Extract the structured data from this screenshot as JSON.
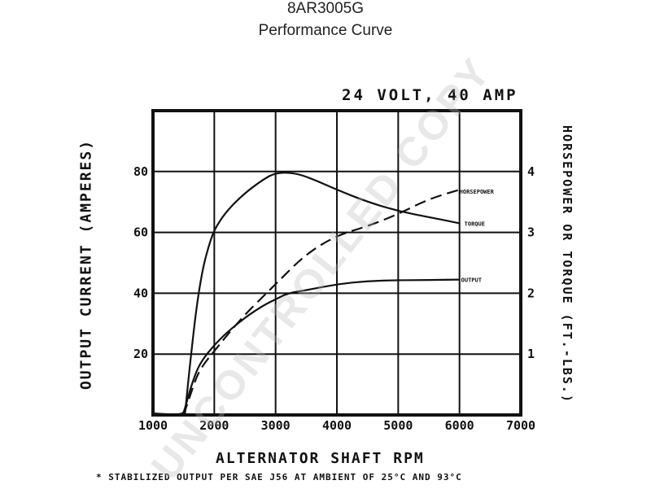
{
  "header": {
    "title": "8AR3005G",
    "subtitle": "Performance Curve"
  },
  "chart_data": {
    "type": "line",
    "rating": "24 VOLT, 40 AMP",
    "xlabel": "ALTERNATOR SHAFT RPM",
    "ylabel_left": "OUTPUT CURRENT (AMPERES)",
    "ylabel_right": "HORSEPOWER OR TORQUE (FT.-LBS.)",
    "footnote": "* STABILIZED OUTPUT PER SAE J56 AT AMBIENT OF 25°C AND 93°C",
    "xlim": [
      1000,
      7000
    ],
    "ylim_left": [
      0,
      100
    ],
    "ylim_right": [
      0,
      5
    ],
    "grid": true,
    "x_ticks": [
      1000,
      2000,
      3000,
      4000,
      5000,
      6000,
      7000
    ],
    "x_tick_labels": [
      "1000",
      "2000",
      "3000",
      "4000",
      "5000",
      "6000",
      "7000"
    ],
    "y_left_ticks": [
      20,
      40,
      60,
      80
    ],
    "y_left_tick_labels": [
      "20",
      "40",
      "60",
      "80"
    ],
    "y_right_ticks": [
      1,
      2,
      3,
      4
    ],
    "y_right_tick_labels": [
      "1",
      "2",
      "3",
      "4"
    ],
    "series": [
      {
        "name": "OUTPUT",
        "axis": "left",
        "style": "solid",
        "x": [
          1000,
          1480,
          1520,
          1600,
          1700,
          1800,
          2000,
          2200,
          2500,
          2800,
          3000,
          3200,
          3500,
          4000,
          4500,
          5000,
          5500,
          6000
        ],
        "y": [
          0.5,
          0,
          2,
          8,
          14,
          18,
          23,
          27,
          32,
          36,
          38,
          40,
          41,
          43,
          44,
          44.3,
          44.3,
          44.5
        ]
      },
      {
        "name": "HORSEPOWER",
        "axis": "right",
        "style": "dashed",
        "x": [
          1500,
          1600,
          1700,
          1800,
          2000,
          2200,
          2500,
          2800,
          3000,
          3500,
          4000,
          4500,
          5000,
          5500,
          6000
        ],
        "y": [
          0,
          0.3,
          0.6,
          0.8,
          1.05,
          1.3,
          1.65,
          1.95,
          2.15,
          2.65,
          2.95,
          3.1,
          3.3,
          3.55,
          3.7
        ]
      },
      {
        "name": "TORQUE",
        "axis": "right",
        "style": "solid",
        "x": [
          1520,
          1600,
          1700,
          1800,
          1900,
          2000,
          2200,
          2500,
          2800,
          3000,
          3300,
          3600,
          4000,
          4500,
          5000,
          5500,
          6000
        ],
        "y": [
          0,
          0.8,
          1.7,
          2.35,
          2.75,
          3.05,
          3.35,
          3.65,
          3.87,
          3.98,
          3.98,
          3.88,
          3.7,
          3.5,
          3.35,
          3.25,
          3.15
        ]
      }
    ],
    "series_labels": [
      "HORSEPOWER",
      "TORQUE",
      "OUTPUT"
    ]
  },
  "watermark": "UNCONTROLLED COPY"
}
